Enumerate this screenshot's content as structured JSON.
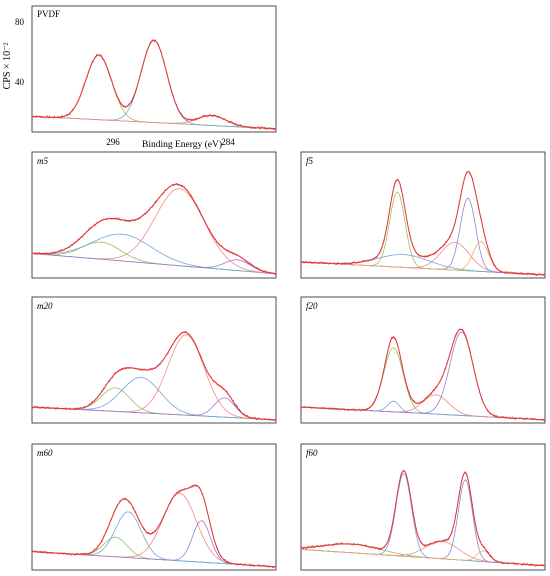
{
  "figure": {
    "colors": {
      "frame": "#3a3a3a",
      "envelope": "#e03a3a",
      "raw": "#e34b4b",
      "components": [
        "#9bbf62",
        "#6fa7e0",
        "#f08a8a",
        "#9a7fd0",
        "#e8b36a"
      ]
    }
  },
  "chart_data": [
    {
      "panel": "PVDF",
      "type": "line",
      "label": "PVDF",
      "ylabel": "CPS × 10⁻²",
      "xlabel": "Binding Energy (eV)",
      "x_ticks": [
        "296",
        "284"
      ],
      "y_ticks": [
        "80",
        "40"
      ],
      "xlim": [
        300,
        281
      ],
      "ylim": [
        0,
        90
      ],
      "background": {
        "start": 11,
        "end": 1
      },
      "components": [
        {
          "center": 294.8,
          "height": 52,
          "width": 1.0
        },
        {
          "center": 290.5,
          "height": 66,
          "width": 1.0
        },
        {
          "center": 286.0,
          "height": 8,
          "width": 1.1
        }
      ]
    },
    {
      "panel": "m5",
      "type": "line",
      "label": "m5",
      "xlim": [
        300,
        281
      ],
      "ylim": [
        0,
        100
      ],
      "background": {
        "start": 22,
        "end": 3
      },
      "components": [
        {
          "center": 294.6,
          "height": 16,
          "width": 1.5
        },
        {
          "center": 293.0,
          "height": 25,
          "width": 2.3
        },
        {
          "center": 288.5,
          "height": 72,
          "width": 1.9
        },
        {
          "center": 284.0,
          "height": 10,
          "width": 1.0
        }
      ]
    },
    {
      "panel": "f5",
      "type": "line",
      "label": "f5",
      "xlim": [
        300,
        281
      ],
      "ylim": [
        0,
        100
      ],
      "background": {
        "start": 14,
        "end": 2
      },
      "components": [
        {
          "center": 292.5,
          "height": 70,
          "width": 0.6
        },
        {
          "center": 292.0,
          "height": 12,
          "width": 2.0
        },
        {
          "center": 288.0,
          "height": 26,
          "width": 1.1
        },
        {
          "center": 287.0,
          "height": 68,
          "width": 0.6
        },
        {
          "center": 286.0,
          "height": 28,
          "width": 0.6
        }
      ]
    },
    {
      "panel": "m20",
      "type": "line",
      "label": "m20",
      "xlim": [
        300,
        281
      ],
      "ylim": [
        0,
        100
      ],
      "background": {
        "start": 14,
        "end": 2
      },
      "components": [
        {
          "center": 293.5,
          "height": 22,
          "width": 1.1
        },
        {
          "center": 291.5,
          "height": 33,
          "width": 1.5
        },
        {
          "center": 288.0,
          "height": 75,
          "width": 1.4
        },
        {
          "center": 285.0,
          "height": 18,
          "width": 0.8
        }
      ]
    },
    {
      "panel": "f20",
      "type": "line",
      "label": "f20",
      "xlim": [
        300,
        281
      ],
      "ylim": [
        0,
        100
      ],
      "background": {
        "start": 14,
        "end": 2
      },
      "components": [
        {
          "center": 292.8,
          "height": 60,
          "width": 0.75
        },
        {
          "center": 292.8,
          "height": 10,
          "width": 0.45
        },
        {
          "center": 289.5,
          "height": 18,
          "width": 1.0
        },
        {
          "center": 287.5,
          "height": 78,
          "width": 0.9
        }
      ]
    },
    {
      "panel": "m60",
      "type": "line",
      "label": "m60",
      "xlim": [
        300,
        281
      ],
      "ylim": [
        0,
        100
      ],
      "background": {
        "start": 16,
        "end": 2
      },
      "components": [
        {
          "center": 293.5,
          "height": 18,
          "width": 0.9
        },
        {
          "center": 292.5,
          "height": 42,
          "width": 1.0
        },
        {
          "center": 288.5,
          "height": 62,
          "width": 1.3
        },
        {
          "center": 286.8,
          "height": 38,
          "width": 0.7
        }
      ]
    },
    {
      "panel": "f60",
      "type": "line",
      "label": "f60",
      "xlim": [
        300,
        281
      ],
      "ylim": [
        0,
        100
      ],
      "background": {
        "start": 18,
        "end": 3
      },
      "components": [
        {
          "center": 296.0,
          "height": 8,
          "width": 2.2
        },
        {
          "center": 292.0,
          "height": 76,
          "width": 0.6
        },
        {
          "center": 289.0,
          "height": 16,
          "width": 1.3
        },
        {
          "center": 287.2,
          "height": 74,
          "width": 0.55
        },
        {
          "center": 285.8,
          "height": 10,
          "width": 0.5
        }
      ]
    }
  ]
}
